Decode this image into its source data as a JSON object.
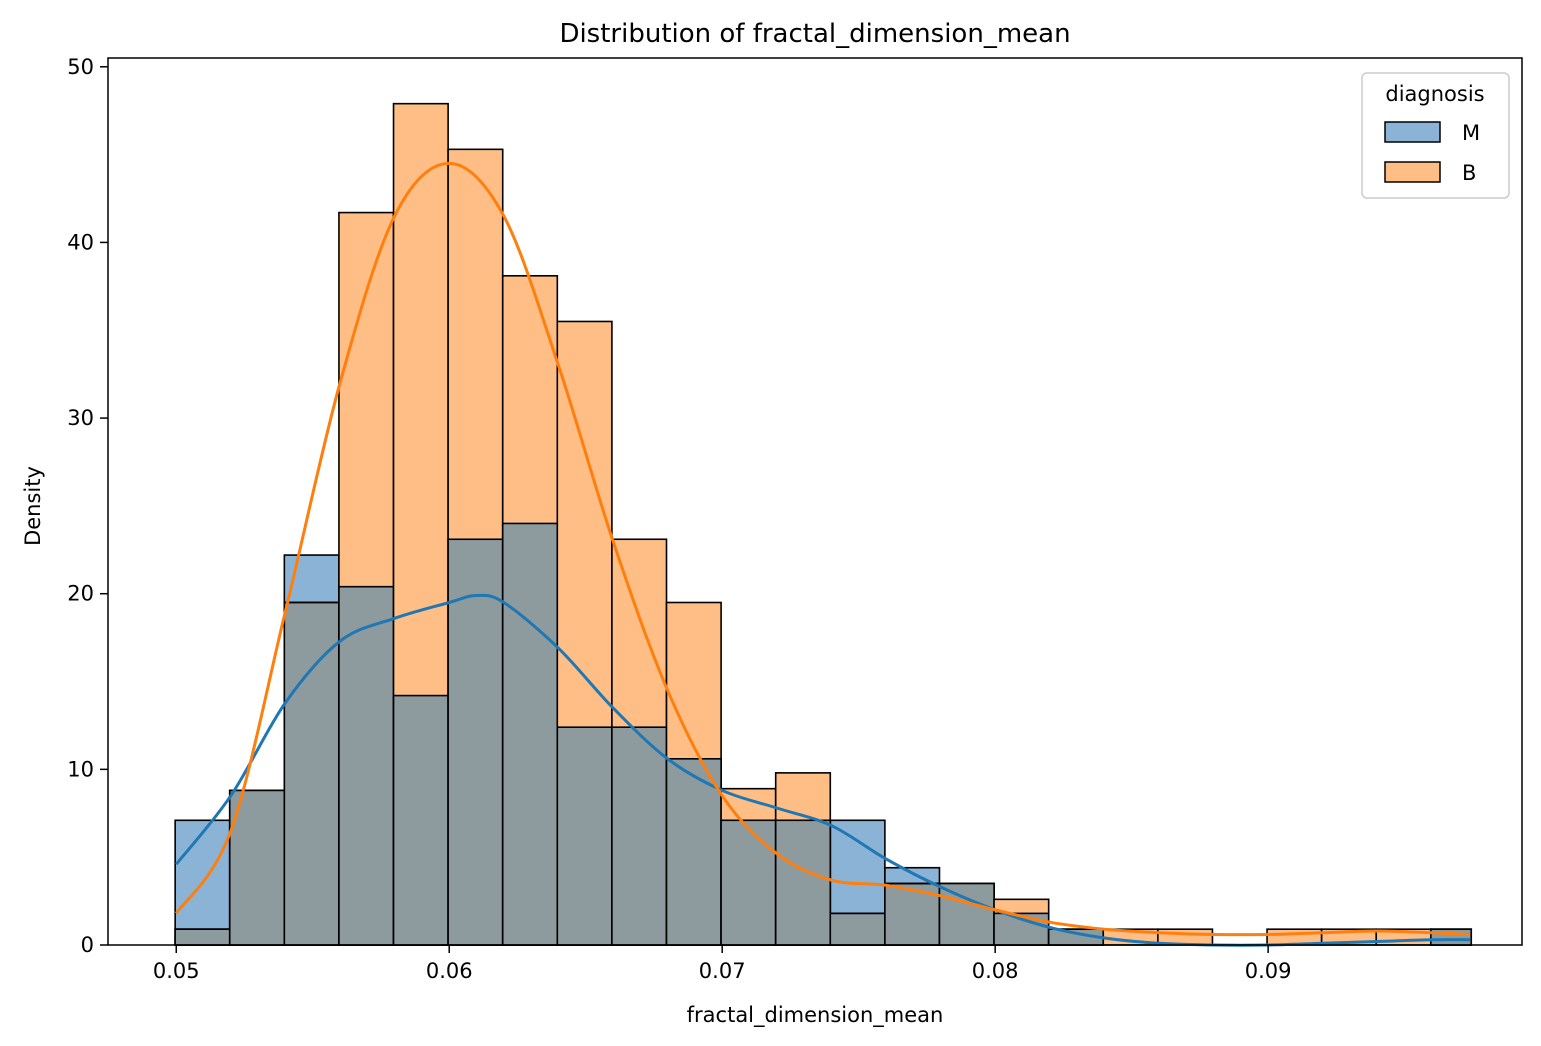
{
  "chart_data": {
    "type": "histogram",
    "title": "Distribution of fractal_dimension_mean",
    "xlabel": "fractal_dimension_mean",
    "ylabel": "Density",
    "xlim": [
      0.0475,
      0.0993
    ],
    "ylim": [
      0,
      50.5
    ],
    "x_ticks": [
      0.05,
      0.06,
      0.07,
      0.08,
      0.09
    ],
    "x_tick_labels": [
      "0.05",
      "0.06",
      "0.07",
      "0.08",
      "0.09"
    ],
    "y_ticks": [
      0,
      10,
      20,
      30,
      40,
      50
    ],
    "y_tick_labels": [
      "0",
      "10",
      "20",
      "30",
      "40",
      "50"
    ],
    "bin_edges": [
      0.04996,
      0.05196,
      0.05396,
      0.05596,
      0.05796,
      0.05996,
      0.06196,
      0.06396,
      0.06596,
      0.06796,
      0.06996,
      0.07196,
      0.07396,
      0.07596,
      0.07796,
      0.07996,
      0.08196,
      0.08396,
      0.08596,
      0.08796,
      0.08996,
      0.09196,
      0.09396,
      0.09596,
      0.09744
    ],
    "legend": {
      "title": "diagnosis",
      "position": "upper right"
    },
    "series": [
      {
        "name": "M",
        "color": "#1f77b4",
        "fill": "#8ab3d6",
        "density": [
          7.1,
          8.8,
          22.2,
          20.4,
          14.2,
          23.1,
          24.0,
          12.4,
          12.4,
          10.6,
          7.1,
          7.1,
          7.1,
          4.4,
          3.5,
          1.8,
          0.9,
          0,
          0,
          0,
          0,
          0,
          0,
          0.9
        ],
        "kde": [
          [
            0.05,
            4.6
          ],
          [
            0.052,
            8.5
          ],
          [
            0.054,
            13.8
          ],
          [
            0.056,
            17.3
          ],
          [
            0.058,
            18.6
          ],
          [
            0.06,
            19.5
          ],
          [
            0.061,
            19.9
          ],
          [
            0.062,
            19.5
          ],
          [
            0.064,
            16.9
          ],
          [
            0.066,
            13.5
          ],
          [
            0.068,
            10.6
          ],
          [
            0.07,
            8.8
          ],
          [
            0.072,
            7.8
          ],
          [
            0.074,
            6.8
          ],
          [
            0.076,
            4.9
          ],
          [
            0.078,
            3.3
          ],
          [
            0.08,
            2.0
          ],
          [
            0.082,
            1.0
          ],
          [
            0.084,
            0.4
          ],
          [
            0.086,
            0.1
          ],
          [
            0.088,
            0.0
          ],
          [
            0.09,
            0.0
          ],
          [
            0.092,
            0.1
          ],
          [
            0.094,
            0.2
          ],
          [
            0.096,
            0.3
          ],
          [
            0.0974,
            0.3
          ]
        ]
      },
      {
        "name": "B",
        "color": "#ff7f0e",
        "fill": "#ffbe86",
        "density": [
          0.9,
          8.8,
          19.5,
          41.7,
          47.9,
          45.3,
          38.1,
          35.5,
          23.1,
          19.5,
          8.9,
          9.8,
          1.8,
          3.5,
          3.5,
          2.6,
          0.9,
          0.9,
          0.9,
          0,
          0.9,
          0.9,
          0.9,
          0.9
        ],
        "kde": [
          [
            0.05,
            1.8
          ],
          [
            0.052,
            6.5
          ],
          [
            0.054,
            19.0
          ],
          [
            0.056,
            32.0
          ],
          [
            0.058,
            41.5
          ],
          [
            0.06,
            44.5
          ],
          [
            0.062,
            41.5
          ],
          [
            0.064,
            33.0
          ],
          [
            0.066,
            23.0
          ],
          [
            0.068,
            14.5
          ],
          [
            0.07,
            8.5
          ],
          [
            0.072,
            5.2
          ],
          [
            0.074,
            3.7
          ],
          [
            0.076,
            3.4
          ],
          [
            0.078,
            2.8
          ],
          [
            0.08,
            2.0
          ],
          [
            0.082,
            1.3
          ],
          [
            0.084,
            0.9
          ],
          [
            0.086,
            0.7
          ],
          [
            0.088,
            0.6
          ],
          [
            0.09,
            0.6
          ],
          [
            0.092,
            0.7
          ],
          [
            0.094,
            0.8
          ],
          [
            0.096,
            0.7
          ],
          [
            0.0974,
            0.6
          ]
        ]
      }
    ]
  }
}
